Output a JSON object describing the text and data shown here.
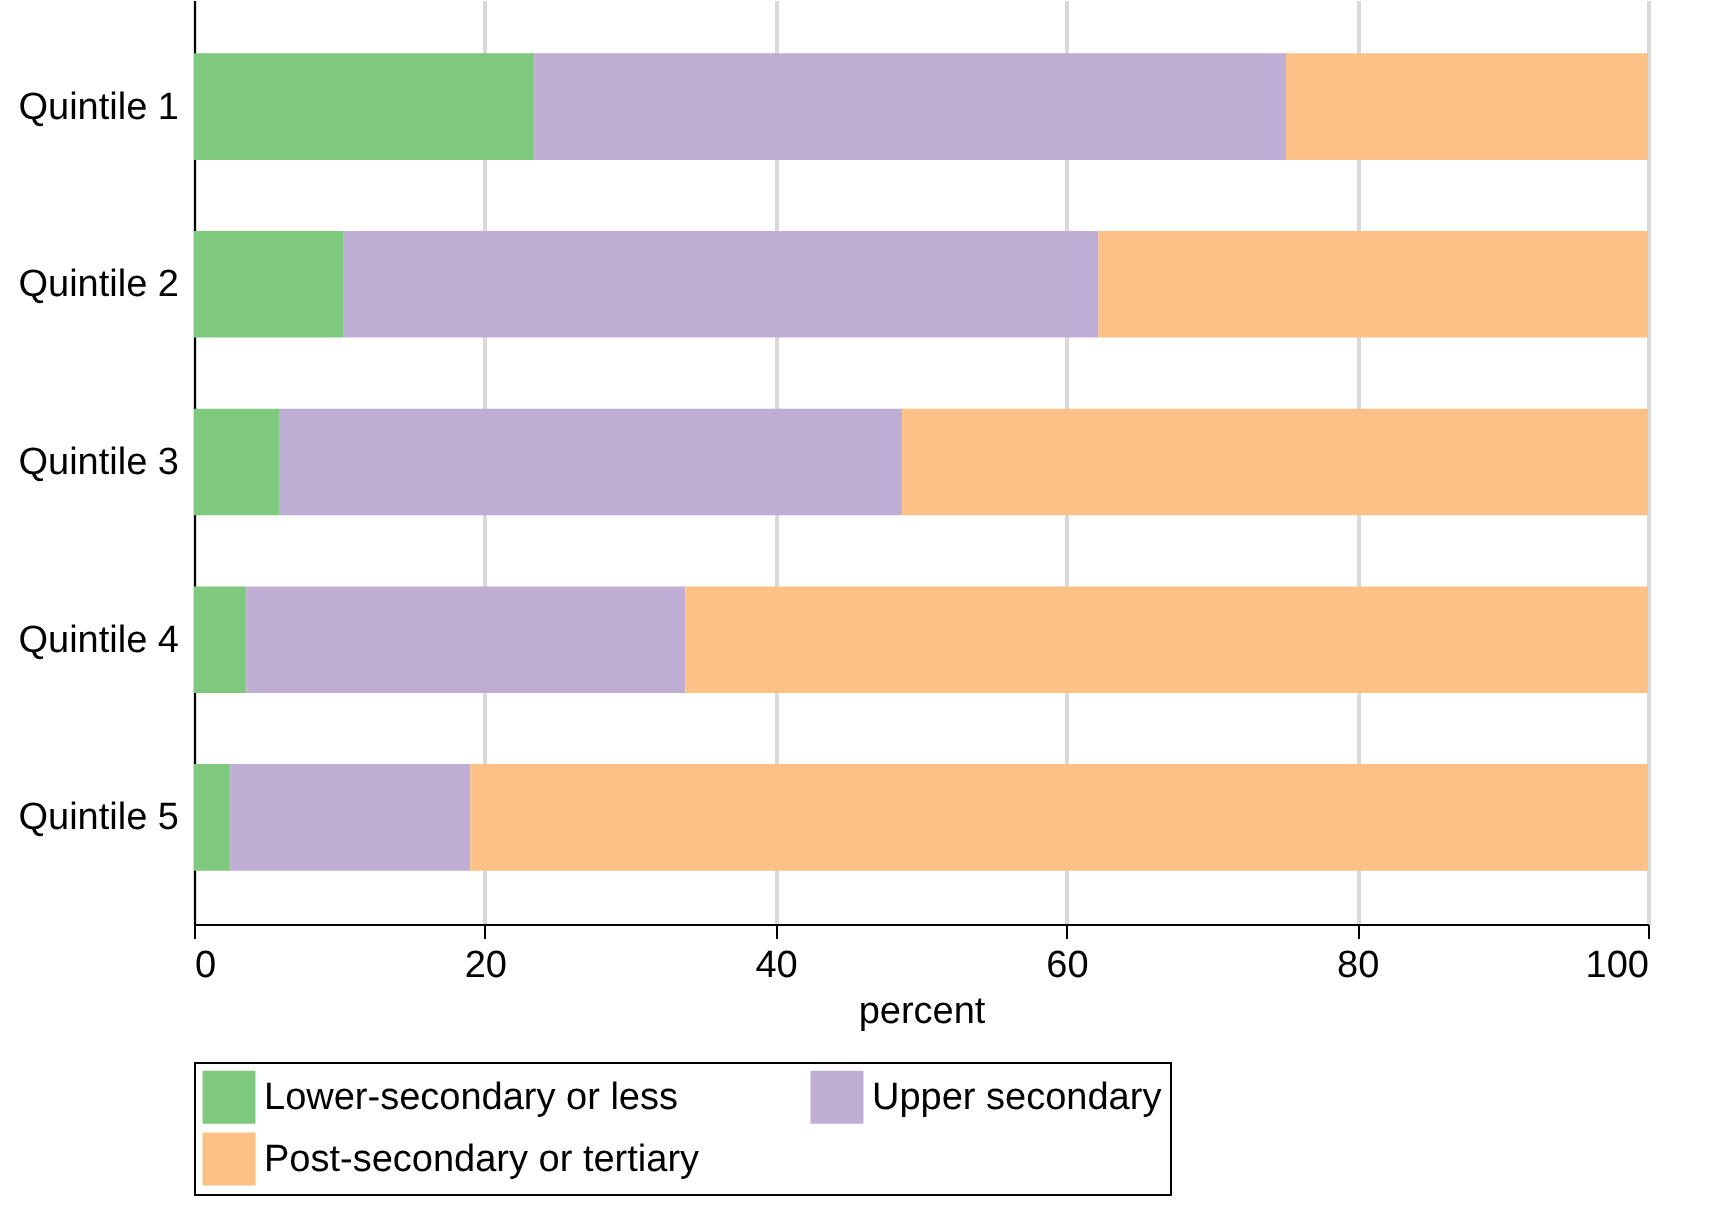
{
  "chart_data": {
    "type": "bar",
    "orientation": "horizontal",
    "stacked": true,
    "xlabel": "percent",
    "categories": [
      "Quintile 1",
      "Quintile 2",
      "Quintile 3",
      "Quintile 4",
      "Quintile 5"
    ],
    "series": [
      {
        "name": "Lower-secondary or less",
        "color": "#7fc97f",
        "values": [
          23.4,
          10.3,
          5.9,
          3.6,
          2.5
        ]
      },
      {
        "name": "Upper secondary",
        "color": "#beaed4",
        "values": [
          51.7,
          51.9,
          42.8,
          30.2,
          16.5
        ]
      },
      {
        "name": "Post-secondary or tertiary",
        "color": "#fdc086",
        "values": [
          24.9,
          37.8,
          51.3,
          66.2,
          81.0
        ]
      }
    ],
    "xlim": [
      0,
      100
    ],
    "xticks": [
      0,
      20,
      40,
      60,
      80,
      100
    ],
    "grid": "x",
    "legend": "bottom"
  }
}
